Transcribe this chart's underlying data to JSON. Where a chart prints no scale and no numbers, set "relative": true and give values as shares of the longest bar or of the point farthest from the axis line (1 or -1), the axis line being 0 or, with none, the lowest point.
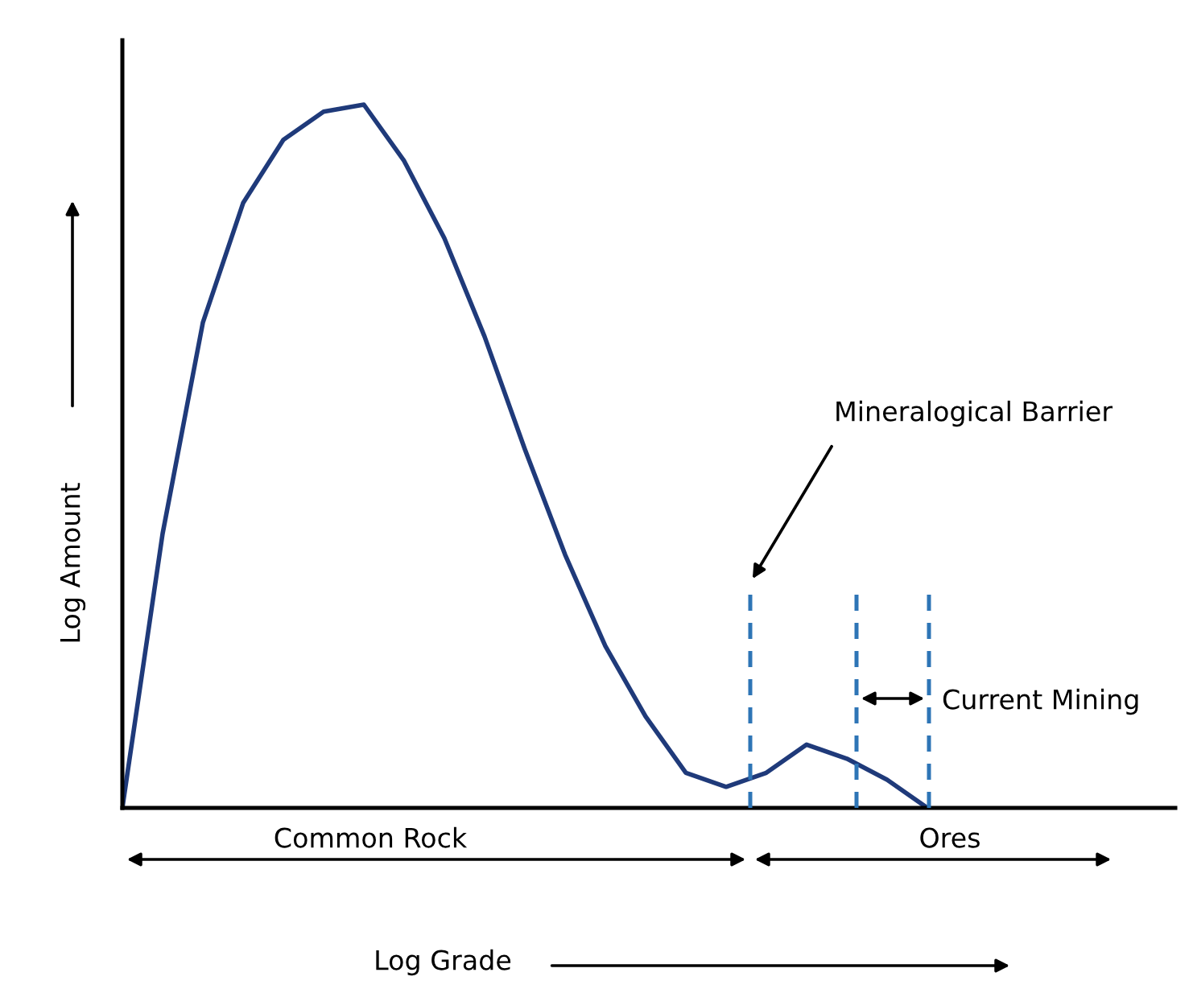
{
  "chart_data": {
    "type": "line",
    "relative": true,
    "ylabel": "Log Amount",
    "categories": [
      null,
      null,
      null,
      null,
      null,
      null,
      null,
      null,
      null,
      null,
      null,
      null,
      null,
      null,
      null,
      null,
      null,
      null,
      null,
      null,
      null,
      null,
      null,
      null,
      null,
      null,
      null
    ],
    "series": [
      {
        "color": "#1f3a7a",
        "values": [
          0,
          0.39,
          0.69,
          0.86,
          0.95,
          0.99,
          1.0,
          0.92,
          0.81,
          0.67,
          0.51,
          0.36,
          0.23,
          0.13,
          0.05,
          0.03,
          0.05,
          0.09,
          0.07,
          0.04,
          0.0,
          null,
          null,
          null,
          null,
          null,
          null
        ]
      }
    ],
    "annotations": [
      "Mineralogical Barrier",
      "Current Mining",
      "Common Rock",
      "Ores",
      "Log Grade"
    ],
    "legend": false
  }
}
